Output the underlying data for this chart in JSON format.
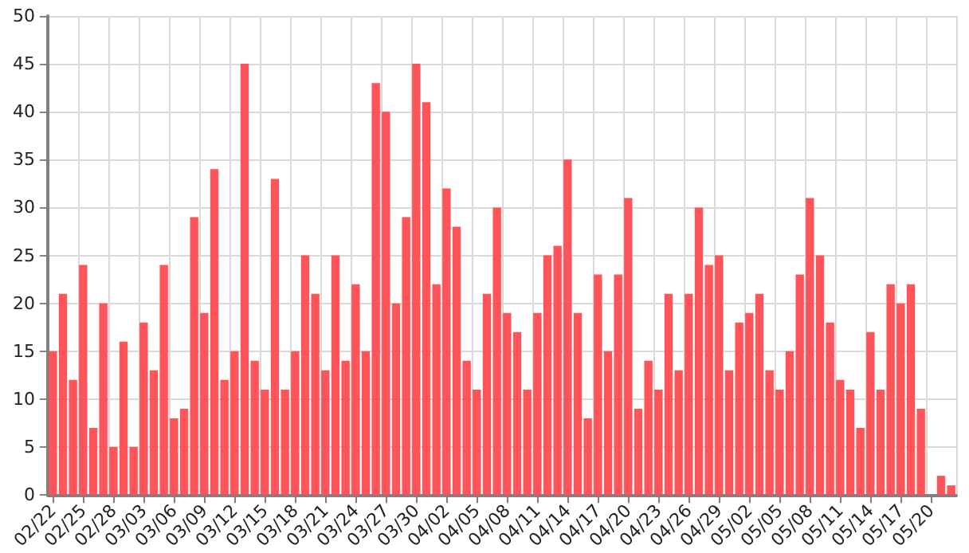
{
  "chart_data": {
    "type": "bar",
    "categories": [
      "02/22",
      null,
      null,
      "02/25",
      null,
      null,
      "02/28",
      null,
      null,
      "03/03",
      null,
      null,
      "03/06",
      null,
      null,
      "03/09",
      null,
      null,
      "03/12",
      null,
      null,
      "03/15",
      null,
      null,
      "03/18",
      null,
      null,
      "03/21",
      null,
      null,
      "03/24",
      null,
      null,
      "03/27",
      null,
      null,
      "03/30",
      null,
      null,
      "04/02",
      null,
      null,
      "04/05",
      null,
      null,
      "04/08",
      null,
      null,
      "04/11",
      null,
      null,
      "04/14",
      null,
      null,
      "04/17",
      null,
      null,
      "04/20",
      null,
      null,
      "04/23",
      null,
      null,
      "04/26",
      null,
      null,
      "04/29",
      null,
      null,
      "05/02",
      null,
      null,
      "05/05",
      null,
      null,
      "05/08",
      null,
      null,
      "05/11",
      null,
      null,
      "05/14",
      null,
      null,
      "05/17",
      null,
      null,
      "05/20",
      null,
      null
    ],
    "values": [
      15,
      21,
      12,
      24,
      7,
      20,
      5,
      16,
      5,
      18,
      13,
      24,
      8,
      9,
      29,
      19,
      34,
      12,
      15,
      45,
      14,
      11,
      33,
      11,
      15,
      25,
      21,
      13,
      25,
      14,
      22,
      15,
      43,
      40,
      20,
      29,
      45,
      41,
      22,
      32,
      28,
      14,
      11,
      21,
      30,
      19,
      17,
      11,
      19,
      25,
      26,
      35,
      19,
      8,
      23,
      15,
      23,
      31,
      9,
      14,
      11,
      21,
      13,
      21,
      30,
      24,
      25,
      13,
      18,
      19,
      21,
      13,
      11,
      15,
      23,
      31,
      25,
      18,
      12,
      11,
      7,
      17,
      11,
      22,
      20,
      22,
      9,
      0,
      2,
      1
    ],
    "color": "#ff4b50",
    "ylim": [
      0,
      50
    ],
    "yticks": [
      0,
      5,
      10,
      15,
      20,
      25,
      30,
      35,
      40,
      45,
      50
    ],
    "grid": true
  }
}
